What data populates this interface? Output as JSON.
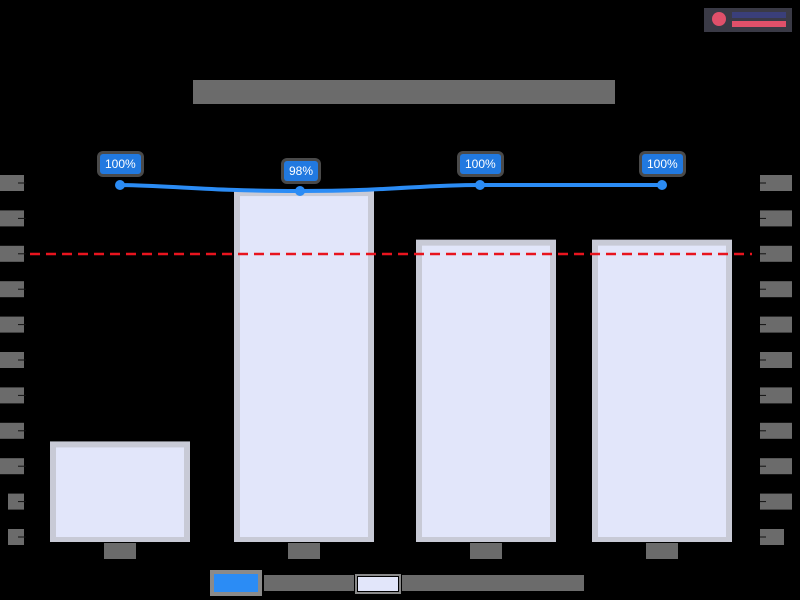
{
  "title": "",
  "logo": {
    "name": "logo",
    "colors": [
      "#3a3f7a",
      "#e0506a"
    ]
  },
  "chart_data": {
    "type": "bar+line",
    "title": "",
    "categories": [
      "",
      "",
      "",
      ""
    ],
    "series": [
      {
        "name": "",
        "type": "bar",
        "axis": "left",
        "color": "#e2e6fa",
        "values": [
          2.7,
          9.8,
          8.4,
          8.4
        ]
      },
      {
        "name": "",
        "type": "line",
        "axis": "right",
        "color": "#2b8cf5",
        "values": [
          100,
          98,
          100,
          100
        ],
        "labels": [
          "100%",
          "98%",
          "100%",
          "100%"
        ]
      }
    ],
    "reference_line": {
      "style": "dashed",
      "color": "#e8141e",
      "value": 8,
      "axis": "left"
    },
    "left_axis": {
      "ticks": 11,
      "ylim": [
        0,
        10
      ],
      "tick_labels": []
    },
    "right_axis": {
      "ticks": 11,
      "tick_labels": []
    },
    "xlabel": "",
    "ylabel": "",
    "legend": {
      "position": "bottom",
      "entries": [
        "",
        ""
      ]
    },
    "grid": false,
    "note": "all axis, category, title and legend text is redacted in the source"
  },
  "line_labels": [
    "100%",
    "98%",
    "100%",
    "100%"
  ]
}
